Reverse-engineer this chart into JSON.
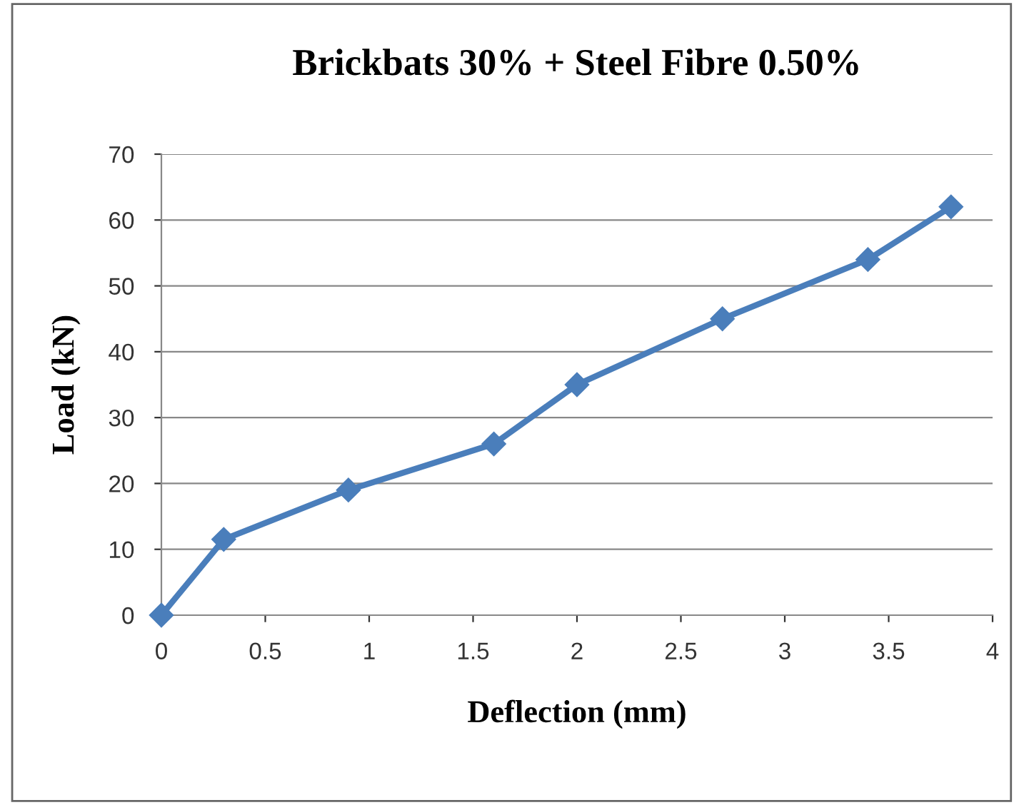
{
  "chart_data": {
    "type": "line",
    "title": "Brickbats 30% + Steel Fibre 0.50%",
    "xlabel": "Deflection (mm)",
    "ylabel": "Load (kN)",
    "x": [
      0,
      0.3,
      0.9,
      1.6,
      2,
      2.7,
      3.4,
      3.8
    ],
    "series": [
      {
        "color": "#4a7ebb",
        "values": [
          0,
          11.5,
          19,
          26,
          35,
          45,
          54,
          62
        ]
      }
    ],
    "xlim": [
      0,
      4
    ],
    "xticks": [
      0,
      0.5,
      1,
      1.5,
      2,
      2.5,
      3,
      3.5,
      4
    ],
    "ylim": [
      0,
      70
    ],
    "yticks": [
      0,
      10,
      20,
      30,
      40,
      50,
      60,
      70
    ],
    "grid": "y",
    "marker": "diamond",
    "line_style": "solid",
    "legend": false
  }
}
